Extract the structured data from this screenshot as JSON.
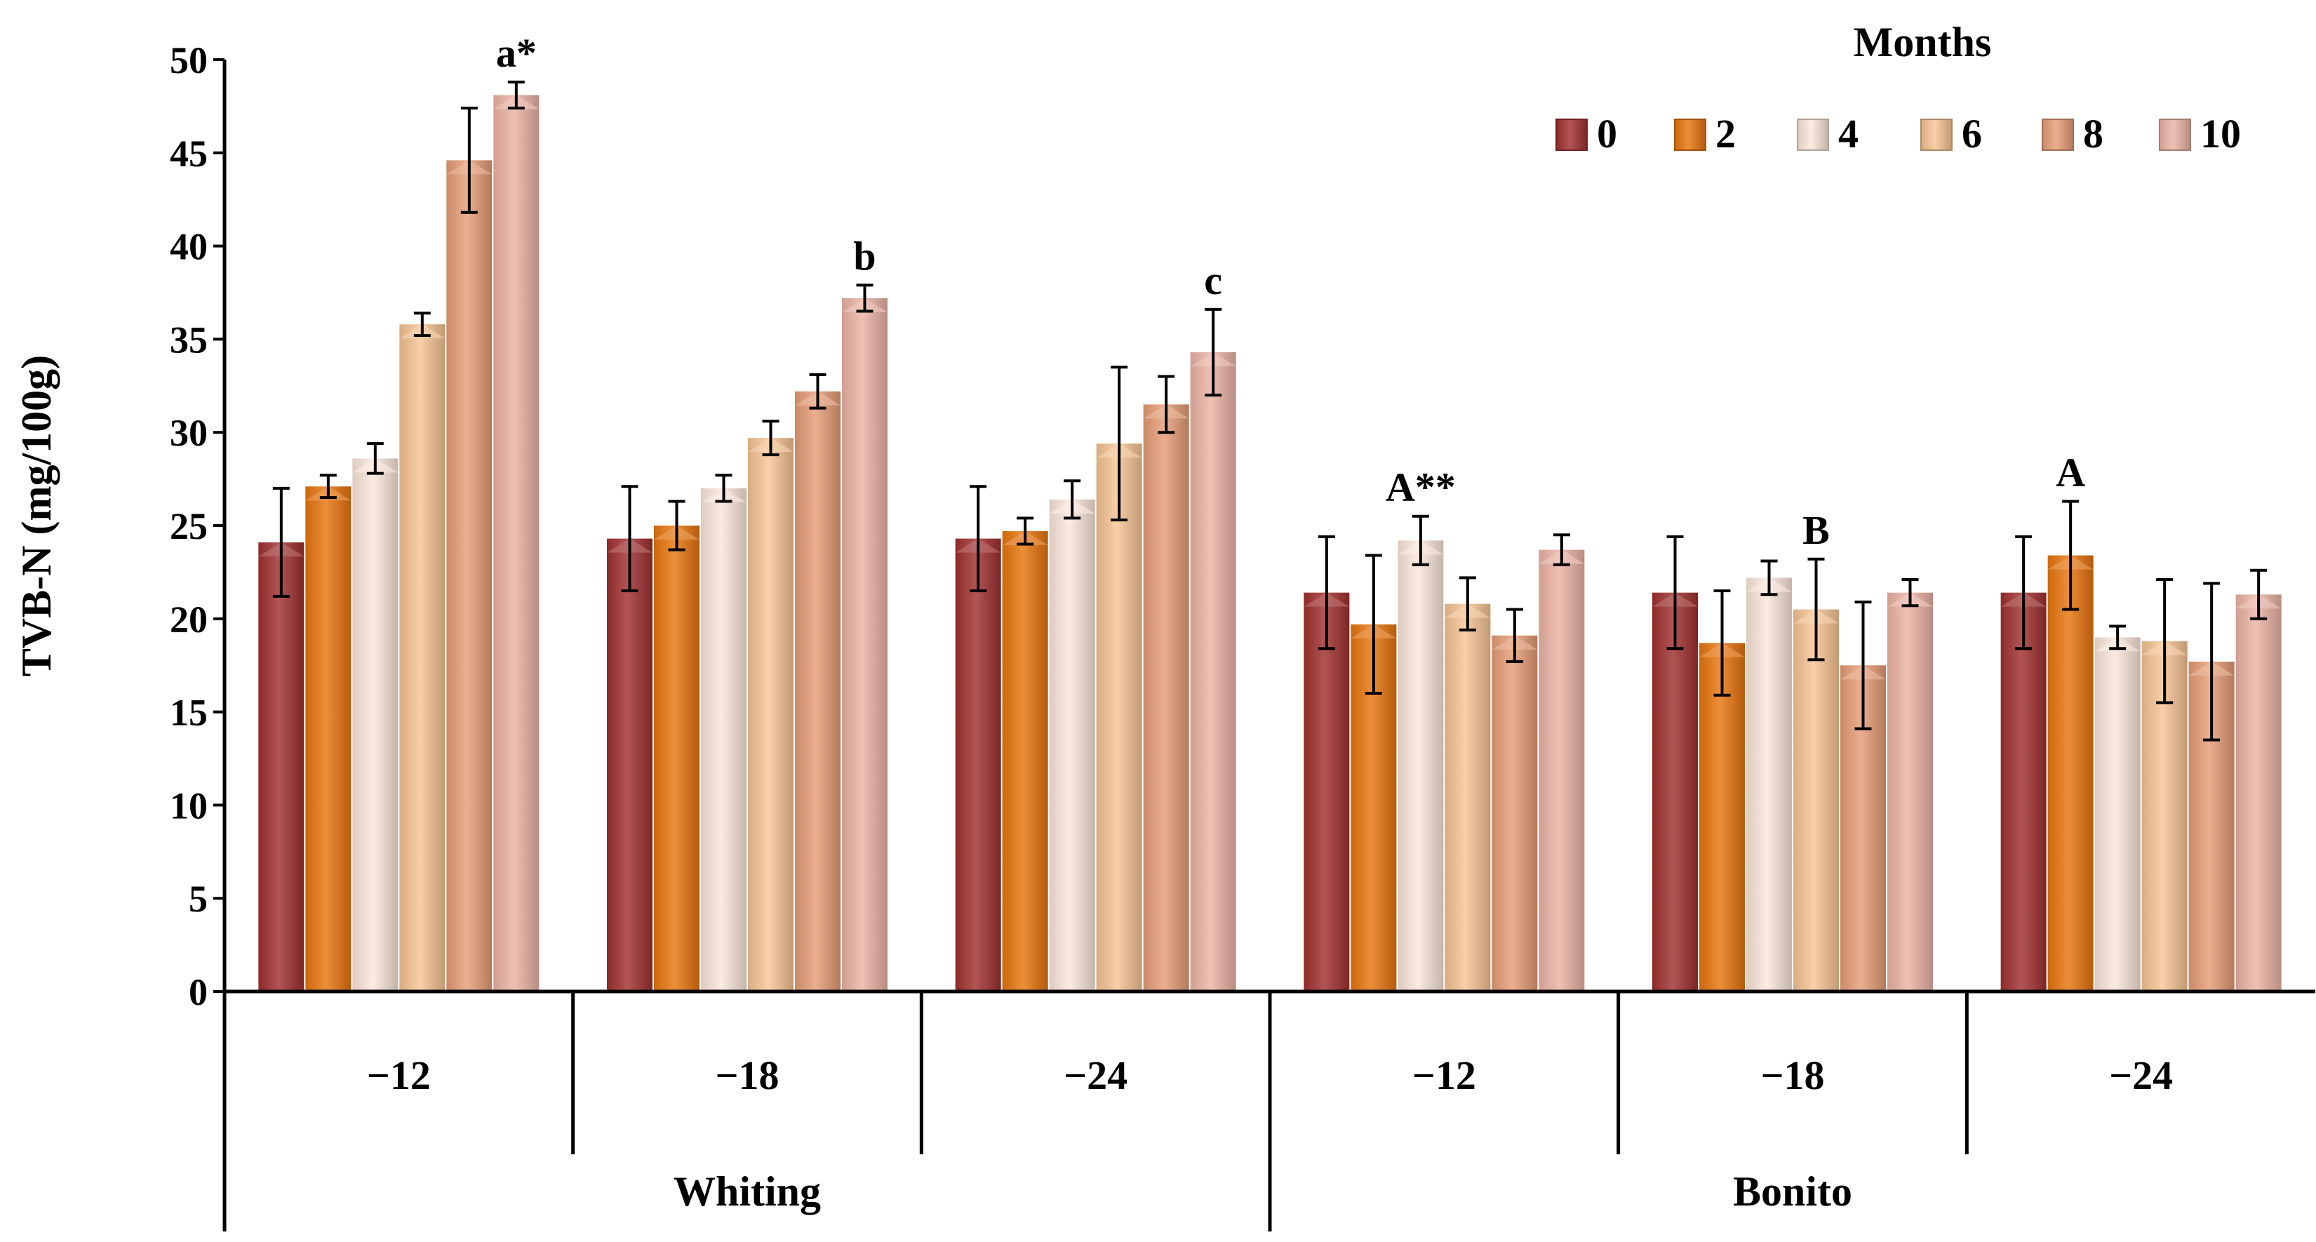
{
  "chart_data": {
    "type": "bar",
    "title": "",
    "ylabel": "TVB-N (mg/100g)",
    "xlabel": "",
    "ylim": [
      0,
      50
    ],
    "yticks": [
      0,
      5,
      10,
      15,
      20,
      25,
      30,
      35,
      40,
      45,
      50
    ],
    "grid": false,
    "legend": {
      "title": "Months",
      "placement": "top-right"
    },
    "groups": [
      {
        "name": "Whiting",
        "categories": [
          "−12",
          "−18",
          "−24"
        ]
      },
      {
        "name": "Bonito",
        "categories": [
          "−12",
          "−18",
          "−24"
        ]
      }
    ],
    "categories": [
      "−12",
      "−18",
      "−24",
      "−12",
      "−18",
      "−24"
    ],
    "series": [
      {
        "name": "0",
        "color": "#a0302f",
        "values": [
          24.1,
          24.3,
          24.3,
          21.4,
          21.4,
          21.4
        ],
        "errors": [
          2.9,
          2.8,
          2.8,
          3.0,
          3.0,
          3.0
        ]
      },
      {
        "name": "2",
        "color": "#e8750e",
        "values": [
          27.1,
          25.0,
          24.7,
          19.7,
          18.7,
          23.4
        ],
        "errors": [
          0.6,
          1.3,
          0.7,
          3.7,
          2.8,
          2.9
        ]
      },
      {
        "name": "4",
        "color": "#fbe7da",
        "values": [
          28.6,
          27.0,
          26.4,
          24.2,
          22.2,
          19.0
        ],
        "errors": [
          0.8,
          0.7,
          1.0,
          1.3,
          0.9,
          0.6
        ]
      },
      {
        "name": "6",
        "color": "#f7c494",
        "values": [
          35.8,
          29.7,
          29.4,
          20.8,
          20.5,
          18.8
        ],
        "errors": [
          0.6,
          0.9,
          4.1,
          1.4,
          2.7,
          3.3
        ]
      },
      {
        "name": "8",
        "color": "#e69d76",
        "values": [
          44.6,
          32.2,
          31.5,
          19.1,
          17.5,
          17.7
        ],
        "errors": [
          2.8,
          0.9,
          1.5,
          1.4,
          3.4,
          4.2
        ]
      },
      {
        "name": "10",
        "color": "#ecb3a5",
        "values": [
          48.1,
          37.2,
          34.3,
          23.7,
          21.4,
          21.3
        ],
        "errors": [
          0.7,
          0.7,
          2.3,
          0.8,
          0.7,
          1.3
        ]
      }
    ],
    "annotations": [
      {
        "text": "a*",
        "category_index": 0,
        "series_index": 5,
        "value": 48.8
      },
      {
        "text": "b",
        "category_index": 1,
        "series_index": 5,
        "value": 37.9
      },
      {
        "text": "c",
        "category_index": 2,
        "series_index": 5,
        "value": 36.6
      },
      {
        "text": "A**",
        "category_index": 3,
        "series_index": 2,
        "value": 25.5
      },
      {
        "text": "B",
        "category_index": 4,
        "series_index": 3,
        "value": 23.2
      },
      {
        "text": "A",
        "category_index": 5,
        "series_index": 1,
        "value": 26.3
      }
    ]
  }
}
